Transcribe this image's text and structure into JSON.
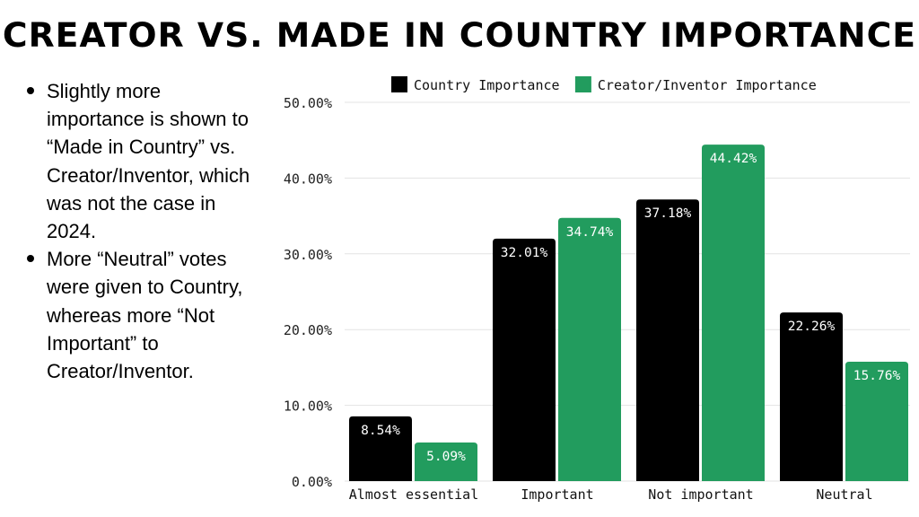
{
  "title": "CREATOR VS. MADE IN COUNTRY IMPORTANCE",
  "bullets": [
    "Slightly more importance is shown to “Made in Country” vs. Creator/Inventor, which was not the case in 2024.",
    "More “Neutral” votes were given to Country, whereas more “Not Important” to Creator/Inventor."
  ],
  "chart_data": {
    "type": "bar",
    "categories": [
      "Almost essential",
      "Important",
      "Not important",
      "Neutral"
    ],
    "series": [
      {
        "name": "Country Importance",
        "color": "#000000",
        "values": [
          8.54,
          32.01,
          37.18,
          22.26
        ],
        "labels": [
          "8.54%",
          "32.01%",
          "37.18%",
          "22.26%"
        ]
      },
      {
        "name": "Creator/Inventor Importance",
        "color": "#229c5e",
        "values": [
          5.09,
          34.74,
          44.42,
          15.76
        ],
        "labels": [
          "5.09%",
          "34.74%",
          "44.42%",
          "15.76%"
        ]
      }
    ],
    "yticks": [
      "0.00%",
      "10.00%",
      "20.00%",
      "30.00%",
      "40.00%",
      "50.00%"
    ],
    "ylim": [
      0,
      50
    ],
    "grid": true,
    "legend": "top"
  }
}
